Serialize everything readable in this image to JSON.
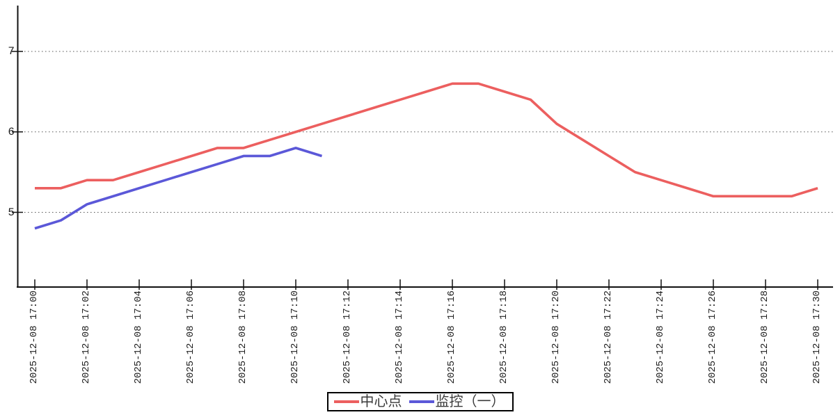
{
  "chart_data": {
    "type": "line",
    "title": "",
    "xlabel": "",
    "ylabel": "",
    "x": [
      "2025-12-08 17:00",
      "2025-12-08 17:01",
      "2025-12-08 17:02",
      "2025-12-08 17:03",
      "2025-12-08 17:04",
      "2025-12-08 17:05",
      "2025-12-08 17:06",
      "2025-12-08 17:07",
      "2025-12-08 17:08",
      "2025-12-08 17:09",
      "2025-12-08 17:10",
      "2025-12-08 17:11",
      "2025-12-08 17:12",
      "2025-12-08 17:13",
      "2025-12-08 17:14",
      "2025-12-08 17:15",
      "2025-12-08 17:16",
      "2025-12-08 17:17",
      "2025-12-08 17:18",
      "2025-12-08 17:19",
      "2025-12-08 17:20",
      "2025-12-08 17:21",
      "2025-12-08 17:22",
      "2025-12-08 17:23",
      "2025-12-08 17:24",
      "2025-12-08 17:25",
      "2025-12-08 17:26",
      "2025-12-08 17:27",
      "2025-12-08 17:28",
      "2025-12-08 17:29",
      "2025-12-08 17:30"
    ],
    "x_tick_step": 2,
    "x_tick_labels": [
      "2025-12-08 17:00",
      "2025-12-08 17:02",
      "2025-12-08 17:04",
      "2025-12-08 17:06",
      "2025-12-08 17:08",
      "2025-12-08 17:10",
      "2025-12-08 17:12",
      "2025-12-08 17:14",
      "2025-12-08 17:16",
      "2025-12-08 17:18",
      "2025-12-08 17:20",
      "2025-12-08 17:22",
      "2025-12-08 17:24",
      "2025-12-08 17:26",
      "2025-12-08 17:28",
      "2025-12-08 17:30"
    ],
    "series": [
      {
        "name": "中心点",
        "color": "#ec5f5f",
        "values": [
          5.3,
          5.3,
          5.4,
          5.4,
          5.5,
          5.6,
          5.7,
          5.8,
          5.8,
          5.9,
          6.0,
          6.1,
          6.2,
          6.3,
          6.4,
          6.5,
          6.6,
          6.6,
          6.5,
          6.4,
          6.1,
          5.9,
          5.7,
          5.5,
          5.4,
          5.3,
          5.2,
          5.2,
          5.2,
          5.2,
          5.3
        ]
      },
      {
        "name": "监控（一）",
        "color": "#5b58d8",
        "values": [
          4.8,
          4.9,
          5.1,
          5.2,
          5.3,
          5.4,
          5.5,
          5.6,
          5.7,
          5.7,
          5.8,
          5.7
        ]
      }
    ],
    "y_ticks": [
      5,
      6,
      7
    ],
    "ylim": [
      4.05,
      7.55
    ],
    "grid": {
      "horizontal_dotted": true,
      "vertical": false
    },
    "legend_position": "bottom-center-boxed",
    "axis_color": "#111111",
    "grid_color": "#555555"
  },
  "legend": {
    "items": [
      {
        "label": "中心点",
        "color": "#ec5f5f"
      },
      {
        "label": "监控（一）",
        "color": "#5b58d8"
      }
    ]
  }
}
